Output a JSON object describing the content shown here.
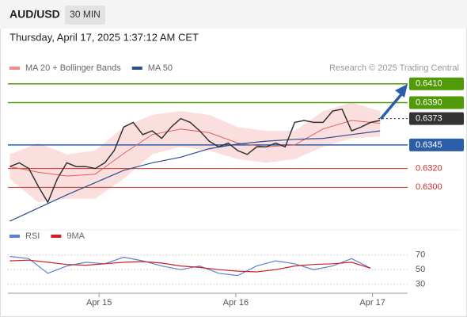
{
  "header": {
    "symbol": "AUD/USD",
    "timeframe": "30 MIN",
    "datetime": "Thursday, April 17, 2025 1:37:12 AM CET"
  },
  "chart_data": [
    {
      "type": "line",
      "credit": "Research © 2025 Trading Central",
      "xlim": [
        -0.2,
        41.9
      ],
      "ylim": [
        0.6259,
        0.6419
      ],
      "x": [
        0,
        1,
        2,
        3,
        4,
        5,
        6,
        7,
        8,
        9,
        10,
        11,
        12,
        13,
        14,
        15,
        16,
        17,
        18,
        19,
        20,
        21,
        22,
        23,
        24,
        25,
        26,
        27,
        28,
        29,
        30,
        31,
        32,
        33,
        34,
        35,
        36,
        37,
        38,
        39
      ],
      "values": [
        0.6322,
        0.6326,
        0.632,
        0.6301,
        0.6284,
        0.6309,
        0.6326,
        0.6322,
        0.6322,
        0.632,
        0.6326,
        0.6339,
        0.6364,
        0.6369,
        0.6356,
        0.636,
        0.6352,
        0.6364,
        0.6373,
        0.6369,
        0.636,
        0.6349,
        0.6343,
        0.6347,
        0.6339,
        0.6335,
        0.6343,
        0.6343,
        0.6347,
        0.6343,
        0.6369,
        0.6371,
        0.6369,
        0.6369,
        0.6381,
        0.6383,
        0.636,
        0.6364,
        0.6369,
        0.6371
      ],
      "color": "#333333",
      "series": [
        {
          "name": "MA 20 + Bollinger Bands",
          "color": "#f28b8b",
          "x": [
            0,
            3,
            6,
            9,
            12,
            15,
            18,
            21,
            24,
            27,
            30,
            33,
            36,
            39
          ],
          "values": [
            0.6322,
            0.6316,
            0.6312,
            0.6314,
            0.6336,
            0.6356,
            0.6362,
            0.6358,
            0.6347,
            0.6343,
            0.6345,
            0.6362,
            0.6371,
            0.6368
          ],
          "upper": [
            0.6335,
            0.6347,
            0.6335,
            0.6339,
            0.6364,
            0.6377,
            0.6381,
            0.6377,
            0.6364,
            0.636,
            0.636,
            0.6381,
            0.639,
            0.6381
          ],
          "lower": [
            0.6309,
            0.6284,
            0.6288,
            0.6288,
            0.6309,
            0.6335,
            0.6343,
            0.6339,
            0.633,
            0.6326,
            0.633,
            0.6343,
            0.6352,
            0.6354
          ]
        },
        {
          "name": "MA 50",
          "color": "#2b4f8f",
          "x": [
            0,
            3,
            6,
            9,
            12,
            15,
            18,
            21,
            24,
            27,
            30,
            33,
            36,
            39
          ],
          "values": [
            0.6264,
            0.6278,
            0.6292,
            0.6305,
            0.6318,
            0.6326,
            0.6332,
            0.6341,
            0.6346,
            0.6349,
            0.6351,
            0.6352,
            0.6356,
            0.636
          ]
        }
      ],
      "levels": [
        {
          "value": 0.641,
          "label": "0.6410",
          "color": "#4f9a06",
          "boxed": true,
          "dash": false
        },
        {
          "value": 0.639,
          "label": "0.6390",
          "color": "#4f9a06",
          "boxed": true,
          "dash": false
        },
        {
          "value": 0.6373,
          "label": "0.6373",
          "color": "#333333",
          "boxed": true,
          "dash": true
        },
        {
          "value": 0.6345,
          "label": "0.6345",
          "color": "#2b5ea8",
          "boxed": true,
          "dash": false
        },
        {
          "value": 0.632,
          "label": "0.6320",
          "color": "#d0302a",
          "boxed": false,
          "dash": false
        },
        {
          "value": 0.63,
          "label": "0.6300",
          "color": "#d0302a",
          "boxed": false,
          "dash": false
        }
      ]
    },
    {
      "type": "line",
      "xlim": [
        -0.2,
        41.9
      ],
      "ylim": [
        20,
        88
      ],
      "yticks": [
        30,
        50,
        70
      ],
      "xticks": [
        {
          "value": 9.4,
          "label": "Apr 15"
        },
        {
          "value": 23.8,
          "label": "Apr 16"
        },
        {
          "value": 38.2,
          "label": "Apr 17"
        }
      ],
      "x": [
        0,
        2,
        4,
        6,
        8,
        10,
        12,
        14,
        16,
        18,
        20,
        22,
        24,
        26,
        28,
        30,
        32,
        34,
        36,
        38
      ],
      "series": [
        {
          "name": "RSI",
          "color": "#5b7fd6",
          "values": [
            68,
            65,
            45,
            55,
            60,
            58,
            67,
            62,
            55,
            50,
            55,
            45,
            42,
            55,
            62,
            58,
            50,
            55,
            65,
            52
          ]
        },
        {
          "name": "9MA",
          "color": "#d02020",
          "values": [
            62,
            63,
            60,
            57,
            56,
            58,
            60,
            61,
            59,
            55,
            53,
            50,
            48,
            47,
            50,
            55,
            57,
            58,
            60,
            52
          ]
        }
      ]
    }
  ]
}
